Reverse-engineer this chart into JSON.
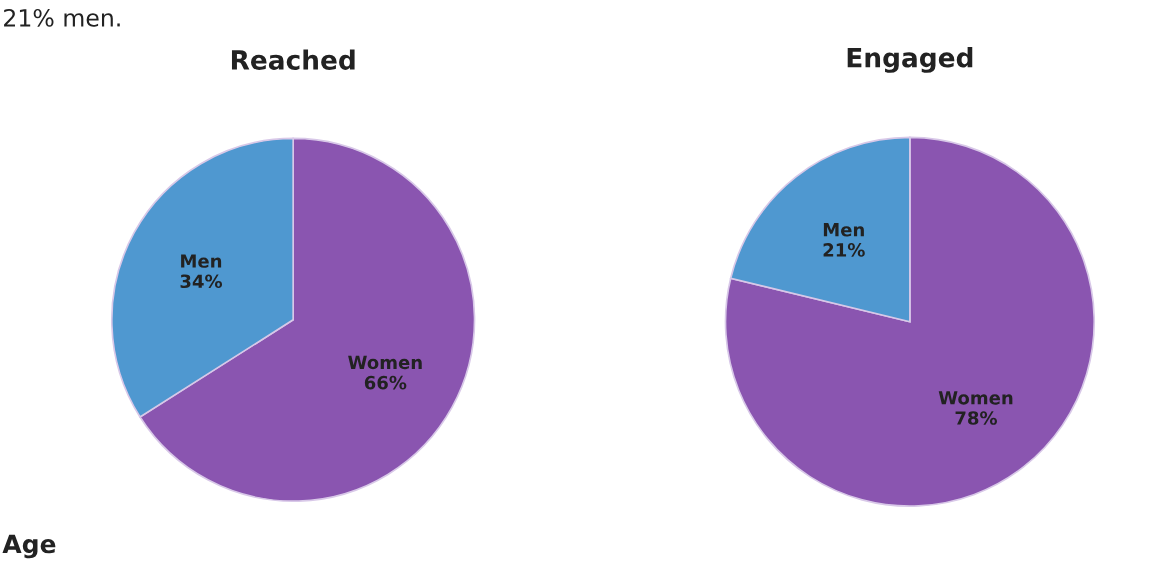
{
  "chart_data": [
    {
      "type": "pie",
      "title": "Reached",
      "categories": [
        "Women",
        "Men"
      ],
      "values": [
        66,
        34
      ],
      "value_labels": [
        "66%",
        "34%"
      ],
      "colors": [
        "#8a55b0",
        "#4f98d0"
      ],
      "annotations": [
        "21% men.",
        "Age"
      ]
    },
    {
      "type": "pie",
      "title": "Engaged",
      "categories": [
        "Women",
        "Men"
      ],
      "values": [
        78,
        21
      ],
      "value_labels": [
        "78%",
        "21%"
      ],
      "colors": [
        "#8a55b0",
        "#4f98d0"
      ]
    }
  ]
}
